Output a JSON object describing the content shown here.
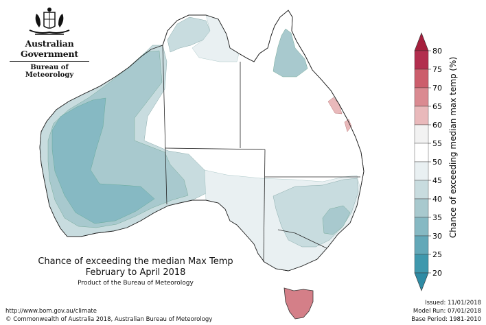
{
  "header": {
    "government": "Australian Government",
    "agency": "Bureau of Meteorology"
  },
  "map": {
    "title_line1": "Chance of exceeding the median Max Temp",
    "title_line2": "February to April 2018",
    "product": "Product of the Bureau of Meteorology"
  },
  "legend": {
    "title": "Chance of exceeding median max temp (%)",
    "ticks": [
      "80",
      "75",
      "70",
      "65",
      "60",
      "55",
      "50",
      "45",
      "40",
      "35",
      "30",
      "25",
      "20"
    ],
    "colors": [
      "#b22e4e",
      "#cc5e6c",
      "#da8a91",
      "#e9b9bb",
      "#f2f2f2",
      "#ffffff",
      "#e9f0f2",
      "#c8dcdf",
      "#a8c9ce",
      "#86b9c3",
      "#63a8b8",
      "#3f98ad"
    ]
  },
  "footer": {
    "url": "http://www.bom.gov.au/climate",
    "copyright": "© Commonwealth of Australia 2018, Australian Bureau of Meteorology",
    "issued": "Issued: 11/01/2018",
    "model_run": "Model Run: 07/01/2018",
    "base_period": "Base Period: 1981-2010"
  }
}
